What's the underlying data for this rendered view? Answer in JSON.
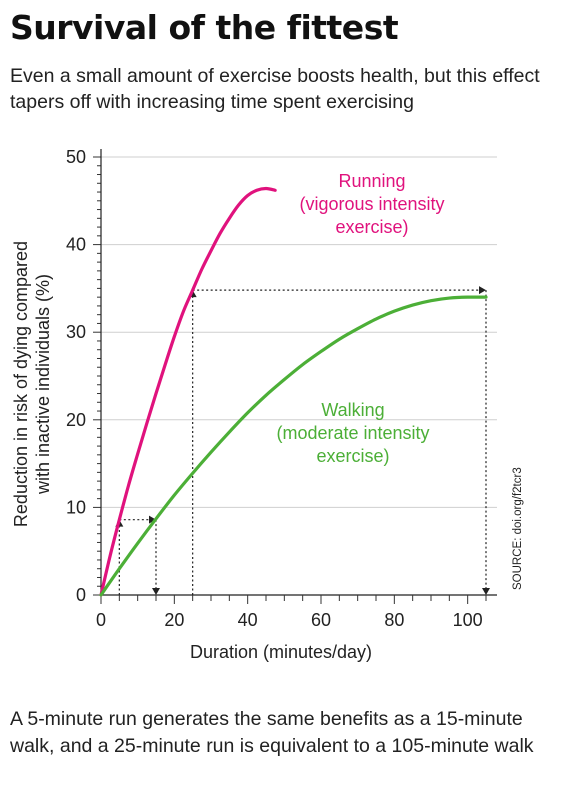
{
  "header": {
    "title": "Survival of the fittest",
    "subtitle": "Even a small amount of exercise boosts health, but this effect tapers off with increasing time spent exercising"
  },
  "footnote": "A 5-minute run generates the same benefits as a 15-minute walk, and a 25-minute run is equivalent to a 105-minute walk",
  "source": "SOURCE: doi.org/f2tcr3",
  "chart_data": {
    "type": "line",
    "xlabel": "Duration (minutes/day)",
    "ylabel_lines": [
      "Reduction in risk of dying compared",
      "with inactive individuals (%)"
    ],
    "xlim": [
      0,
      108
    ],
    "ylim": [
      0,
      50
    ],
    "xticks": [
      0,
      20,
      40,
      60,
      80,
      100
    ],
    "yticks": [
      0,
      10,
      20,
      30,
      40,
      50
    ],
    "xminor_step": 5,
    "yminor_step": 1,
    "grid": "horizontal",
    "series": [
      {
        "name_lines": [
          "Running",
          "(vigorous intensity",
          "exercise)"
        ],
        "color": "#e0127d",
        "x": [
          0,
          2.5,
          5,
          7.5,
          10,
          12.5,
          15,
          17.5,
          20,
          22.5,
          25,
          27.5,
          30,
          32.5,
          35,
          37.5,
          40,
          42.5,
          45,
          47.5
        ],
        "y": [
          0,
          4.5,
          8.6,
          12.5,
          16.1,
          19.6,
          23.0,
          26.3,
          29.5,
          32.4,
          34.8,
          37.2,
          39.3,
          41.3,
          43.0,
          44.5,
          45.6,
          46.2,
          46.4,
          46.2
        ]
      },
      {
        "name_lines": [
          "Walking",
          "(moderate intensity",
          "exercise)"
        ],
        "color": "#4caf37",
        "x": [
          0,
          5,
          10,
          15,
          20,
          25,
          30,
          35,
          40,
          45,
          50,
          55,
          60,
          65,
          70,
          75,
          80,
          85,
          90,
          95,
          100,
          105
        ],
        "y": [
          0,
          3.0,
          5.9,
          8.7,
          11.4,
          13.9,
          16.3,
          18.6,
          20.8,
          22.8,
          24.6,
          26.3,
          27.8,
          29.2,
          30.4,
          31.5,
          32.4,
          33.1,
          33.6,
          33.9,
          34.0,
          34.0
        ]
      }
    ],
    "comparisons": [
      {
        "run_minutes": 5,
        "walk_minutes": 15,
        "value": 8.6
      },
      {
        "run_minutes": 25,
        "walk_minutes": 105,
        "value": 34.8
      }
    ]
  }
}
